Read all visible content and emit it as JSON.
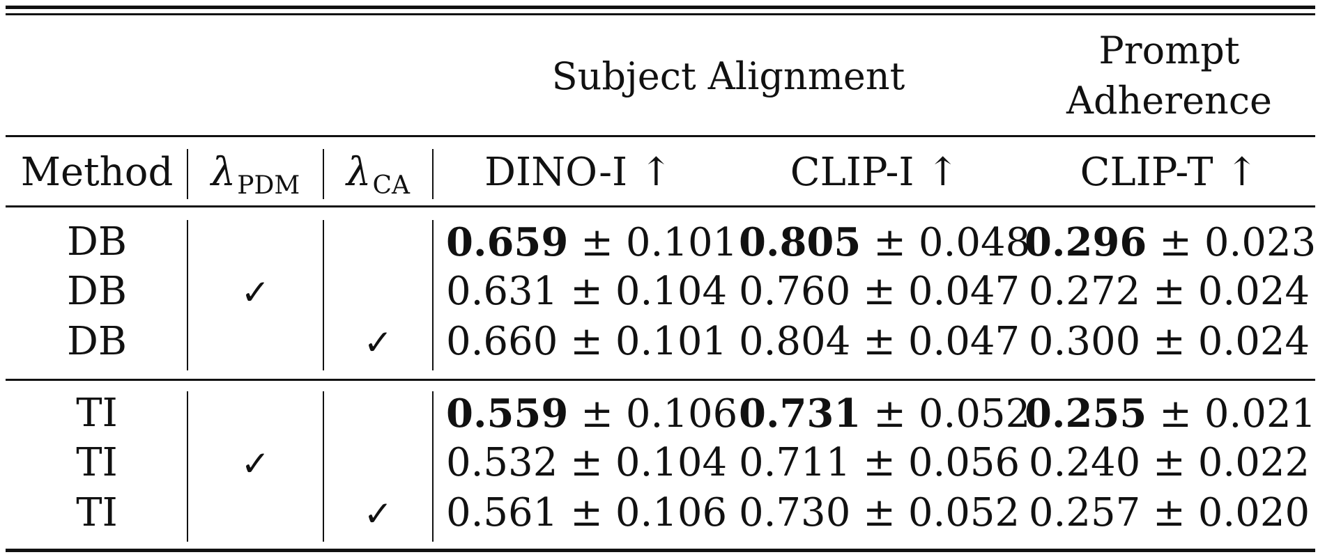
{
  "table": {
    "group_headers": {
      "subject_alignment": "Subject Alignment",
      "prompt_adherence_line1": "Prompt",
      "prompt_adherence_line2": "Adherence"
    },
    "columns": {
      "method": "Method",
      "lambda_symbol": "λ",
      "lambda_pdm_sub": "PDM",
      "lambda_ca_sub": "CA",
      "dino_i": "DINO-I ↑",
      "clip_i": "CLIP-I ↑",
      "clip_t": "CLIP-T ↑"
    },
    "check_mark": "✓",
    "rows": [
      {
        "method": "DB",
        "pdm": false,
        "ca": false,
        "dino_mean": "0.659",
        "dino_std": "± 0.101",
        "dino_bold": true,
        "clipi_mean": "0.805",
        "clipi_std": "± 0.048",
        "clipi_bold": true,
        "clipt_mean": "0.296",
        "clipt_std": "± 0.023",
        "clipt_bold": true
      },
      {
        "method": "DB",
        "pdm": true,
        "ca": false,
        "dino_mean": "0.631",
        "dino_std": "± 0.104",
        "dino_bold": false,
        "clipi_mean": "0.760",
        "clipi_std": "± 0.047",
        "clipi_bold": false,
        "clipt_mean": "0.272",
        "clipt_std": "± 0.024",
        "clipt_bold": false
      },
      {
        "method": "DB",
        "pdm": false,
        "ca": true,
        "dino_mean": "0.660",
        "dino_std": "± 0.101",
        "dino_bold": false,
        "clipi_mean": "0.804",
        "clipi_std": "± 0.047",
        "clipi_bold": false,
        "clipt_mean": "0.300",
        "clipt_std": "± 0.024",
        "clipt_bold": false
      },
      {
        "method": "TI",
        "pdm": false,
        "ca": false,
        "dino_mean": "0.559",
        "dino_std": "± 0.106",
        "dino_bold": true,
        "clipi_mean": "0.731",
        "clipi_std": "± 0.052",
        "clipi_bold": true,
        "clipt_mean": "0.255",
        "clipt_std": "± 0.021",
        "clipt_bold": true
      },
      {
        "method": "TI",
        "pdm": true,
        "ca": false,
        "dino_mean": "0.532",
        "dino_std": "± 0.104",
        "dino_bold": false,
        "clipi_mean": "0.711",
        "clipi_std": "± 0.056",
        "clipi_bold": false,
        "clipt_mean": "0.240",
        "clipt_std": "± 0.022",
        "clipt_bold": false
      },
      {
        "method": "TI",
        "pdm": false,
        "ca": true,
        "dino_mean": "0.561",
        "dino_std": "± 0.106",
        "dino_bold": false,
        "clipi_mean": "0.730",
        "clipi_std": "± 0.052",
        "clipi_bold": false,
        "clipt_mean": "0.257",
        "clipt_std": "± 0.020",
        "clipt_bold": false
      }
    ]
  }
}
